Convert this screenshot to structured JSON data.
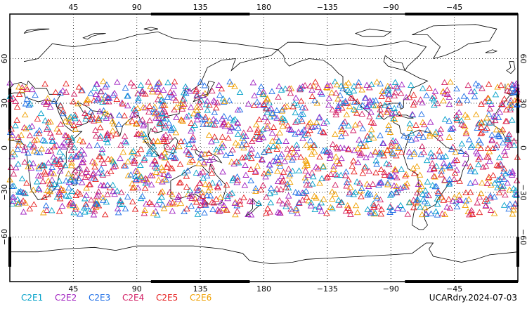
{
  "chart_data": {
    "type": "scatter",
    "projection": "equirectangular",
    "center_longitude": 180,
    "lon_range": [
      0,
      360
    ],
    "lat_range": [
      -90,
      90
    ],
    "grid": "dotted",
    "marker": "open triangle",
    "lon_ticks": [
      45,
      90,
      135,
      180,
      225,
      270,
      315
    ],
    "lon_tick_labels": [
      "45",
      "90",
      "135",
      "180",
      "−135",
      "−90",
      "−45"
    ],
    "lat_ticks": [
      60,
      30,
      0,
      -30,
      -60
    ],
    "lat_tick_labels": [
      "60",
      "30",
      "0",
      "−30",
      "−60"
    ],
    "observation_lat_band": [
      -45,
      45
    ],
    "series": [
      {
        "name": "C2E1",
        "color": "#00a0c8"
      },
      {
        "name": "C2E2",
        "color": "#a020c0"
      },
      {
        "name": "C2E3",
        "color": "#1e6ee6"
      },
      {
        "name": "C2E4",
        "color": "#d21e64"
      },
      {
        "name": "C2E5",
        "color": "#e61e1e"
      },
      {
        "name": "C2E6",
        "color": "#f0a000"
      }
    ],
    "caption": "UCARdry.2024-07-03"
  }
}
